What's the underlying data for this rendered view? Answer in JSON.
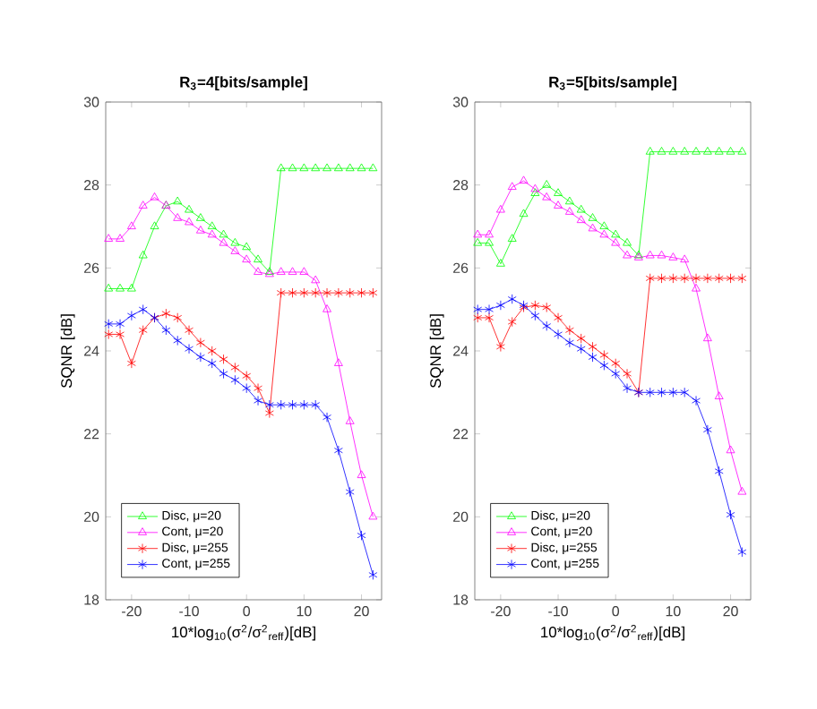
{
  "chart_data": [
    {
      "type": "line",
      "title": "R$_{3}$=4[bits/sample]",
      "xlabel": "10*log$_{10}$(σ$^{2}$/σ$^{2}$$_{reff}$)[dB]",
      "ylabel": "SQNR [dB]",
      "x": [
        -24,
        -22,
        -20,
        -18,
        -16,
        -14,
        -12,
        -10,
        -8,
        -6,
        -4,
        -2,
        0,
        2,
        4,
        6,
        8,
        10,
        12,
        14,
        16,
        18,
        20,
        22
      ],
      "xlim": [
        -24.5,
        23.5
      ],
      "xticks": [
        -20,
        -10,
        0,
        10,
        20
      ],
      "ylim": [
        18,
        30
      ],
      "yticks": [
        18,
        20,
        22,
        24,
        26,
        28,
        30
      ],
      "legend": "bottom left",
      "line_style": "solid",
      "series": [
        {
          "name": "Disc, μ=20",
          "color": "#00ff00",
          "marker": "triangle",
          "values": [
            25.5,
            25.5,
            25.5,
            26.3,
            27.0,
            27.5,
            27.6,
            27.4,
            27.2,
            27.0,
            26.8,
            26.6,
            26.5,
            26.2,
            25.9,
            28.4,
            28.4,
            28.4,
            28.4,
            28.4,
            28.4,
            28.4,
            28.4,
            28.4
          ]
        },
        {
          "name": "Cont, μ=20",
          "color": "#ff00ff",
          "marker": "triangle",
          "values": [
            26.7,
            26.7,
            27.0,
            27.5,
            27.7,
            27.5,
            27.2,
            27.1,
            26.9,
            26.8,
            26.6,
            26.4,
            26.2,
            25.9,
            25.85,
            25.9,
            25.9,
            25.9,
            25.7,
            25.0,
            23.7,
            22.3,
            21.0,
            20.0
          ]
        },
        {
          "name": "Disc, μ=255",
          "color": "#ff0000",
          "marker": "cross",
          "values": [
            24.4,
            24.4,
            23.7,
            24.5,
            24.8,
            24.9,
            24.8,
            24.5,
            24.2,
            24.0,
            23.8,
            23.6,
            23.4,
            23.1,
            22.5,
            25.4,
            25.4,
            25.4,
            25.4,
            25.4,
            25.4,
            25.4,
            25.4,
            25.4
          ]
        },
        {
          "name": "Cont, μ=255",
          "color": "#0000ff",
          "marker": "cross",
          "values": [
            24.65,
            24.65,
            24.85,
            25.0,
            24.8,
            24.5,
            24.25,
            24.05,
            23.85,
            23.7,
            23.45,
            23.3,
            23.1,
            22.8,
            22.7,
            22.7,
            22.7,
            22.7,
            22.7,
            22.4,
            21.6,
            20.6,
            19.55,
            18.6
          ]
        }
      ]
    },
    {
      "type": "line",
      "title": "R$_{3}$=5[bits/sample]",
      "xlabel": "10*log$_{10}$(σ$^{2}$/σ$^{2}$$_{reff}$)[dB]",
      "ylabel": "SQNR [dB]",
      "x": [
        -24,
        -22,
        -20,
        -18,
        -16,
        -14,
        -12,
        -10,
        -8,
        -6,
        -4,
        -2,
        0,
        2,
        4,
        6,
        8,
        10,
        12,
        14,
        16,
        18,
        20,
        22
      ],
      "xlim": [
        -24.5,
        23.5
      ],
      "xticks": [
        -20,
        -10,
        0,
        10,
        20
      ],
      "ylim": [
        18,
        30
      ],
      "yticks": [
        18,
        20,
        22,
        24,
        26,
        28,
        30
      ],
      "legend": "bottom left",
      "line_style": "solid",
      "series": [
        {
          "name": "Disc, μ=20",
          "color": "#00ff00",
          "marker": "triangle",
          "values": [
            26.6,
            26.6,
            26.1,
            26.7,
            27.3,
            27.8,
            28.0,
            27.8,
            27.6,
            27.4,
            27.2,
            27.0,
            26.8,
            26.6,
            26.3,
            28.8,
            28.8,
            28.8,
            28.8,
            28.8,
            28.8,
            28.8,
            28.8,
            28.8
          ]
        },
        {
          "name": "Cont, μ=20",
          "color": "#ff00ff",
          "marker": "triangle",
          "values": [
            26.8,
            26.8,
            27.4,
            27.95,
            28.1,
            27.9,
            27.7,
            27.5,
            27.35,
            27.15,
            26.95,
            26.8,
            26.6,
            26.3,
            26.25,
            26.3,
            26.3,
            26.25,
            26.2,
            25.5,
            24.3,
            22.9,
            21.6,
            20.6
          ]
        },
        {
          "name": "Disc, μ=255",
          "color": "#ff0000",
          "marker": "cross",
          "values": [
            24.8,
            24.8,
            24.1,
            24.7,
            25.05,
            25.1,
            25.05,
            24.8,
            24.5,
            24.3,
            24.1,
            23.9,
            23.7,
            23.45,
            23.0,
            25.75,
            25.75,
            25.75,
            25.75,
            25.75,
            25.75,
            25.75,
            25.75,
            25.75
          ]
        },
        {
          "name": "Cont, μ=255",
          "color": "#0000ff",
          "marker": "cross",
          "values": [
            25.0,
            25.0,
            25.1,
            25.25,
            25.1,
            24.85,
            24.6,
            24.4,
            24.2,
            24.05,
            23.85,
            23.65,
            23.45,
            23.1,
            23.0,
            23.0,
            23.0,
            23.0,
            23.0,
            22.8,
            22.1,
            21.1,
            20.05,
            19.15
          ]
        }
      ]
    }
  ]
}
